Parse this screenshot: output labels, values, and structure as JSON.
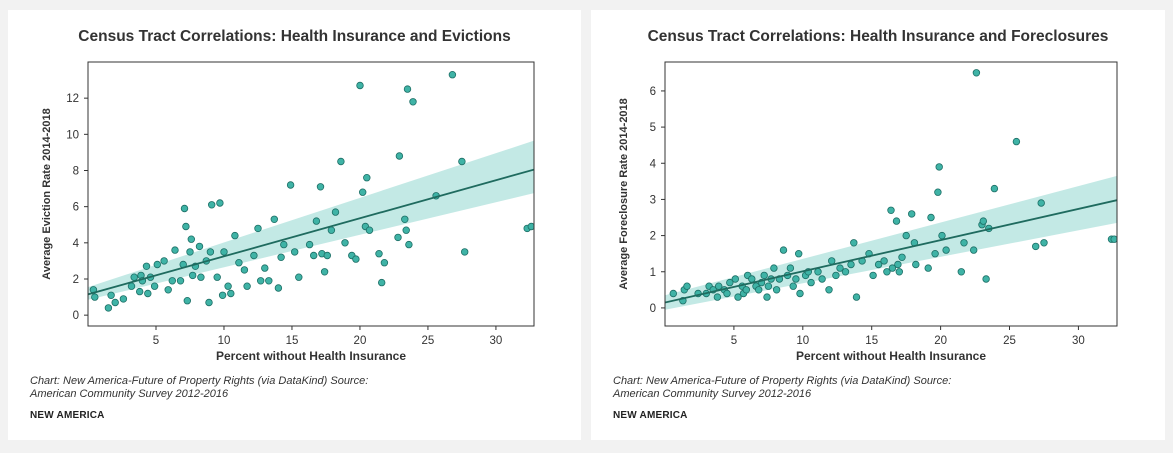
{
  "chart_data": [
    {
      "type": "scatter",
      "title": "Census Tract Correlations: Health Insurance and Evictions",
      "xlabel": "Percent without Health Insurance",
      "ylabel": "Average Eviction Rate 2014-2018",
      "xlim": [
        0,
        32.8
      ],
      "ylim": [
        -0.6,
        14
      ],
      "xticks": [
        5,
        10,
        15,
        20,
        25,
        30
      ],
      "yticks": [
        0,
        2,
        4,
        6,
        8,
        10,
        12
      ],
      "points": [
        [
          0.4,
          1.4
        ],
        [
          0.5,
          1.0
        ],
        [
          1.5,
          0.4
        ],
        [
          1.7,
          1.1
        ],
        [
          2.0,
          0.7
        ],
        [
          2.6,
          0.9
        ],
        [
          3.2,
          1.6
        ],
        [
          3.4,
          2.1
        ],
        [
          3.8,
          1.3
        ],
        [
          3.9,
          2.2
        ],
        [
          4.0,
          1.9
        ],
        [
          4.3,
          2.7
        ],
        [
          4.4,
          1.2
        ],
        [
          4.6,
          2.1
        ],
        [
          4.9,
          1.6
        ],
        [
          5.1,
          2.8
        ],
        [
          5.6,
          3.0
        ],
        [
          5.9,
          1.4
        ],
        [
          6.2,
          1.9
        ],
        [
          6.4,
          3.6
        ],
        [
          6.8,
          1.9
        ],
        [
          7.0,
          2.8
        ],
        [
          7.1,
          5.9
        ],
        [
          7.2,
          4.9
        ],
        [
          7.3,
          0.8
        ],
        [
          7.5,
          3.5
        ],
        [
          7.6,
          4.2
        ],
        [
          7.7,
          2.2
        ],
        [
          7.9,
          2.7
        ],
        [
          8.2,
          3.8
        ],
        [
          8.3,
          2.1
        ],
        [
          8.7,
          3.0
        ],
        [
          8.9,
          0.7
        ],
        [
          9.0,
          3.5
        ],
        [
          9.1,
          6.1
        ],
        [
          9.5,
          2.1
        ],
        [
          9.7,
          6.2
        ],
        [
          9.9,
          1.1
        ],
        [
          10.0,
          3.5
        ],
        [
          10.3,
          1.6
        ],
        [
          10.5,
          1.2
        ],
        [
          10.8,
          4.4
        ],
        [
          11.1,
          2.9
        ],
        [
          11.5,
          2.5
        ],
        [
          11.7,
          1.6
        ],
        [
          12.2,
          3.3
        ],
        [
          12.5,
          4.8
        ],
        [
          12.7,
          1.9
        ],
        [
          13.0,
          2.6
        ],
        [
          13.3,
          1.9
        ],
        [
          13.7,
          5.3
        ],
        [
          14.0,
          1.5
        ],
        [
          14.2,
          3.2
        ],
        [
          14.4,
          3.9
        ],
        [
          14.9,
          7.2
        ],
        [
          15.2,
          3.5
        ],
        [
          15.5,
          2.1
        ],
        [
          16.3,
          3.9
        ],
        [
          16.6,
          3.3
        ],
        [
          16.8,
          5.2
        ],
        [
          17.1,
          7.1
        ],
        [
          17.2,
          3.4
        ],
        [
          17.4,
          2.4
        ],
        [
          17.6,
          3.3
        ],
        [
          17.9,
          4.7
        ],
        [
          18.2,
          5.7
        ],
        [
          18.6,
          8.5
        ],
        [
          18.9,
          4.0
        ],
        [
          19.4,
          3.3
        ],
        [
          19.7,
          3.1
        ],
        [
          20.0,
          12.7
        ],
        [
          20.2,
          6.8
        ],
        [
          20.4,
          4.9
        ],
        [
          20.5,
          7.6
        ],
        [
          20.7,
          4.7
        ],
        [
          21.4,
          3.4
        ],
        [
          21.6,
          1.8
        ],
        [
          21.8,
          2.9
        ],
        [
          22.8,
          4.3
        ],
        [
          22.9,
          8.8
        ],
        [
          23.3,
          5.3
        ],
        [
          23.4,
          4.7
        ],
        [
          23.5,
          12.5
        ],
        [
          23.6,
          3.9
        ],
        [
          23.9,
          11.8
        ],
        [
          25.6,
          6.6
        ],
        [
          26.8,
          13.3
        ],
        [
          27.5,
          8.5
        ],
        [
          27.7,
          3.5
        ],
        [
          32.3,
          4.8
        ],
        [
          32.6,
          4.9
        ]
      ],
      "trend": {
        "x": [
          0,
          32.8
        ],
        "y": [
          1.15,
          8.05
        ]
      },
      "band": {
        "lower": [
          0.85,
          6.75
        ],
        "upper": [
          1.55,
          9.65
        ]
      },
      "caption": "Chart: New America-Future of Property Rights (via DataKind) Source: American Community Survey 2012-2016",
      "brand": "NEW AMERICA"
    },
    {
      "type": "scatter",
      "title": "Census Tract Correlations: Health Insurance and Foreclosures",
      "xlabel": "Percent without Health Insurance",
      "ylabel": "Average Foreclosure Rate 2014-2018",
      "xlim": [
        0,
        32.8
      ],
      "ylim": [
        -0.5,
        6.8
      ],
      "xticks": [
        5,
        10,
        15,
        20,
        25,
        30
      ],
      "yticks": [
        0,
        1,
        2,
        3,
        4,
        5,
        6
      ],
      "points": [
        [
          0.6,
          0.4
        ],
        [
          1.3,
          0.2
        ],
        [
          1.4,
          0.5
        ],
        [
          1.6,
          0.6
        ],
        [
          2.4,
          0.4
        ],
        [
          3.0,
          0.4
        ],
        [
          3.2,
          0.6
        ],
        [
          3.5,
          0.5
        ],
        [
          3.8,
          0.3
        ],
        [
          3.9,
          0.6
        ],
        [
          4.3,
          0.5
        ],
        [
          4.5,
          0.4
        ],
        [
          4.7,
          0.7
        ],
        [
          5.1,
          0.8
        ],
        [
          5.3,
          0.3
        ],
        [
          5.6,
          0.6
        ],
        [
          5.7,
          0.4
        ],
        [
          5.9,
          0.5
        ],
        [
          6.0,
          0.9
        ],
        [
          6.3,
          0.8
        ],
        [
          6.6,
          0.6
        ],
        [
          6.8,
          0.5
        ],
        [
          7.0,
          0.7
        ],
        [
          7.2,
          0.9
        ],
        [
          7.4,
          0.3
        ],
        [
          7.5,
          0.6
        ],
        [
          7.7,
          0.8
        ],
        [
          7.9,
          1.1
        ],
        [
          8.1,
          0.5
        ],
        [
          8.3,
          0.8
        ],
        [
          8.6,
          1.6
        ],
        [
          8.9,
          0.9
        ],
        [
          9.1,
          1.1
        ],
        [
          9.3,
          0.6
        ],
        [
          9.5,
          0.8
        ],
        [
          9.7,
          1.5
        ],
        [
          9.8,
          0.4
        ],
        [
          10.2,
          0.9
        ],
        [
          10.4,
          1.0
        ],
        [
          10.6,
          0.7
        ],
        [
          11.1,
          1.0
        ],
        [
          11.4,
          0.8
        ],
        [
          11.9,
          0.5
        ],
        [
          12.1,
          1.3
        ],
        [
          12.4,
          0.9
        ],
        [
          12.7,
          1.1
        ],
        [
          13.1,
          1.0
        ],
        [
          13.5,
          1.2
        ],
        [
          13.7,
          1.8
        ],
        [
          13.9,
          0.3
        ],
        [
          14.3,
          1.3
        ],
        [
          14.8,
          1.5
        ],
        [
          15.1,
          0.9
        ],
        [
          15.5,
          1.2
        ],
        [
          15.9,
          1.3
        ],
        [
          16.1,
          1.0
        ],
        [
          16.4,
          2.7
        ],
        [
          16.5,
          1.1
        ],
        [
          16.8,
          2.4
        ],
        [
          16.9,
          1.2
        ],
        [
          17.0,
          1.0
        ],
        [
          17.2,
          1.4
        ],
        [
          17.5,
          2.0
        ],
        [
          17.9,
          2.6
        ],
        [
          18.1,
          1.8
        ],
        [
          18.2,
          1.2
        ],
        [
          19.1,
          1.1
        ],
        [
          19.3,
          2.5
        ],
        [
          19.6,
          1.5
        ],
        [
          19.8,
          3.2
        ],
        [
          19.9,
          3.9
        ],
        [
          20.1,
          2.0
        ],
        [
          20.4,
          1.6
        ],
        [
          21.5,
          1.0
        ],
        [
          21.7,
          1.8
        ],
        [
          22.4,
          1.6
        ],
        [
          22.6,
          6.5
        ],
        [
          23.0,
          2.3
        ],
        [
          23.1,
          2.4
        ],
        [
          23.3,
          0.8
        ],
        [
          23.5,
          2.2
        ],
        [
          23.9,
          3.3
        ],
        [
          25.5,
          4.6
        ],
        [
          26.9,
          1.7
        ],
        [
          27.3,
          2.9
        ],
        [
          27.5,
          1.8
        ],
        [
          32.4,
          1.9
        ],
        [
          32.6,
          1.9
        ]
      ],
      "trend": {
        "x": [
          0,
          32.8
        ],
        "y": [
          0.15,
          2.98
        ]
      },
      "band": {
        "lower": [
          -0.05,
          2.35
        ],
        "upper": [
          0.35,
          3.65
        ]
      },
      "caption": "Chart: New America-Future of Property Rights (via DataKind) Source: American Community Survey 2012-2016",
      "brand": "NEW AMERICA"
    }
  ],
  "colors": {
    "point_fill": "#3fb3a6",
    "point_stroke": "#1d6f66",
    "trend_line": "#1f6b5f",
    "band": "#b9e5e0",
    "axis": "#333333"
  }
}
